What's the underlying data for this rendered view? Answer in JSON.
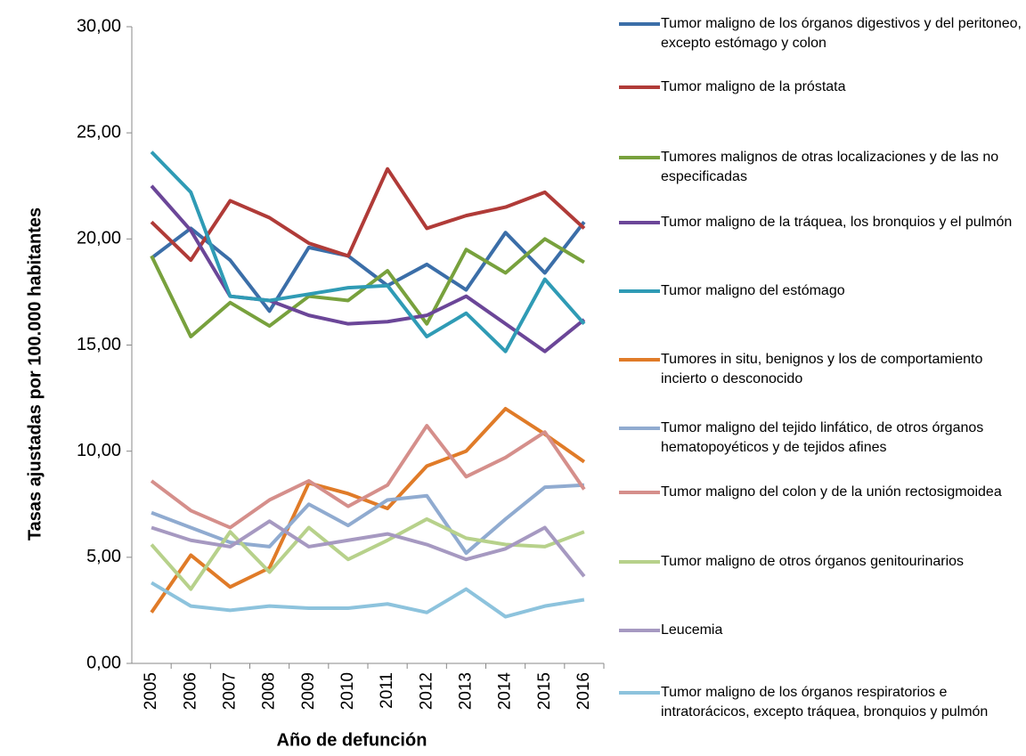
{
  "chart_data": {
    "type": "line",
    "x_label": "Año de defunción",
    "y_label": "Tasas ajustadas por 100.000 habitantes",
    "categories": [
      "2005",
      "2006",
      "2007",
      "2008",
      "2009",
      "2010",
      "2011",
      "2012",
      "2013",
      "2014",
      "2015",
      "2016"
    ],
    "ylim": [
      0,
      30
    ],
    "yticks": [
      {
        "value": 0,
        "label": "0,00"
      },
      {
        "value": 5,
        "label": "5,00"
      },
      {
        "value": 10,
        "label": "10,00"
      },
      {
        "value": 15,
        "label": "15,00"
      },
      {
        "value": 20,
        "label": "20,00"
      },
      {
        "value": 25,
        "label": "25,00"
      },
      {
        "value": 30,
        "label": "30,00"
      }
    ],
    "series": [
      {
        "name": "Tumor maligno de los órganos digestivos y del peritoneo, excepto estómago y colon",
        "color": "#3b6ea8",
        "values": [
          19.1,
          20.5,
          19.0,
          16.6,
          19.6,
          19.2,
          17.8,
          18.8,
          17.6,
          20.3,
          18.4,
          20.8
        ]
      },
      {
        "name": "Tumor maligno de la próstata",
        "color": "#b03b38",
        "values": [
          20.8,
          19.0,
          21.8,
          21.0,
          19.8,
          19.2,
          23.3,
          20.5,
          21.1,
          21.5,
          22.2,
          20.5
        ]
      },
      {
        "name": "Tumores malignos de otras localizaciones y de las no especificadas",
        "color": "#78a13d",
        "values": [
          19.2,
          15.4,
          17.0,
          15.9,
          17.3,
          17.1,
          18.5,
          16.0,
          19.5,
          18.4,
          20.0,
          18.9
        ]
      },
      {
        "name": "Tumor maligno de la tráquea, los bronquios y el pulmón",
        "color": "#6b4698",
        "values": [
          22.5,
          20.4,
          17.3,
          17.1,
          16.4,
          16.0,
          16.1,
          16.4,
          17.3,
          16.0,
          14.7,
          16.2
        ]
      },
      {
        "name": "Tumor maligno del estómago",
        "color": "#2f9bb5",
        "values": [
          24.1,
          22.2,
          17.3,
          17.1,
          17.4,
          17.7,
          17.8,
          15.4,
          16.5,
          14.7,
          18.1,
          16.0
        ]
      },
      {
        "name": "Tumores in situ, benignos y los de comportamiento incierto o desconocido",
        "color": "#e07b28",
        "values": [
          2.4,
          5.1,
          3.6,
          4.5,
          8.5,
          8.0,
          7.3,
          9.3,
          10.0,
          12.0,
          10.8,
          9.5
        ]
      },
      {
        "name": "Tumor maligno del tejido linfático, de otros órganos hematopoyéticos y de tejidos afines",
        "color": "#90abd0",
        "values": [
          7.1,
          6.4,
          5.7,
          5.5,
          7.5,
          6.5,
          7.7,
          7.9,
          5.2,
          6.8,
          8.3,
          8.4
        ]
      },
      {
        "name": "Tumor maligno del colon y de la unión rectosigmoidea",
        "color": "#d58f8b",
        "values": [
          8.6,
          7.2,
          6.4,
          7.7,
          8.6,
          7.4,
          8.4,
          11.2,
          8.8,
          9.7,
          10.9,
          8.2
        ]
      },
      {
        "name": "Tumor maligno de otros órganos genitourinarios",
        "color": "#b7d18b",
        "values": [
          5.6,
          3.5,
          6.2,
          4.3,
          6.4,
          4.9,
          5.8,
          6.8,
          5.9,
          5.6,
          5.5,
          6.2
        ]
      },
      {
        "name": "Leucemia",
        "color": "#a699c1",
        "values": [
          6.4,
          5.8,
          5.5,
          6.7,
          5.5,
          5.8,
          6.1,
          5.6,
          4.9,
          5.4,
          6.4,
          4.1
        ]
      },
      {
        "name": "Tumor maligno de los órganos respiratorios e intratorácicos, excepto tráquea, bronquios y pulmón",
        "color": "#8dc3dd",
        "values": [
          3.8,
          2.7,
          2.5,
          2.7,
          2.6,
          2.6,
          2.8,
          2.4,
          3.5,
          2.2,
          2.7,
          3.0
        ]
      }
    ]
  }
}
